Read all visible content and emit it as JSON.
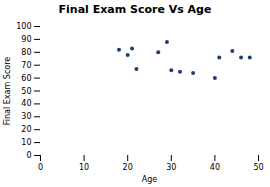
{
  "chart_data": {
    "type": "scatter",
    "title": "Final Exam Score Vs Age",
    "xlabel": "Age",
    "ylabel": "Final Exam Score",
    "x": [
      18,
      20,
      21,
      22,
      27,
      29,
      30,
      32,
      35,
      40,
      41,
      44,
      46,
      48
    ],
    "y": [
      82,
      78,
      83,
      67,
      80,
      88,
      66,
      65,
      64,
      60,
      76,
      81,
      76,
      76
    ],
    "color": "#1f3f6e",
    "xlim": [
      0,
      50
    ],
    "ylim": [
      0,
      100
    ],
    "xticks": [
      0,
      10,
      20,
      30,
      40,
      50
    ],
    "yticks": [
      0,
      10,
      20,
      30,
      40,
      50,
      60,
      70,
      80,
      90,
      100
    ],
    "grid": false
  }
}
